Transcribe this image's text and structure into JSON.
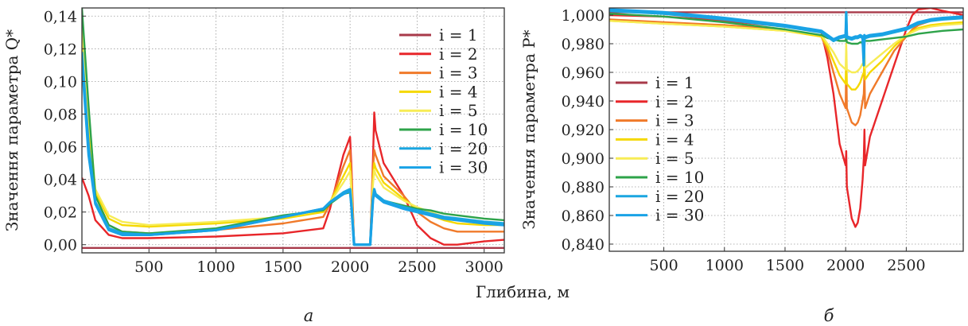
{
  "figure": {
    "shared_xlabel": "Глибина, м",
    "panel_a_caption": "а",
    "panel_b_caption": "б"
  },
  "colors": {
    "i1": "#a83a4a",
    "i2": "#e8262a",
    "i3": "#f07a2a",
    "i4": "#f5d800",
    "i5": "#f7ec55",
    "i10": "#2ea34a",
    "i20": "#1aa6e0",
    "i30": "#19a2e6"
  },
  "chart_data": [
    {
      "type": "line",
      "panel": "а",
      "ylabel": "Значення параметра Q*",
      "xlabel": "Глибина, м",
      "xlim": [
        0,
        3150
      ],
      "ylim": [
        -0.005,
        0.145
      ],
      "xticks": [
        500,
        1000,
        1500,
        2000,
        2500,
        3000
      ],
      "xtick_labels": [
        "500",
        "1000",
        "1500",
        "2000",
        "2500",
        "3000"
      ],
      "yticks": [
        0.0,
        0.02,
        0.04,
        0.06,
        0.08,
        0.1,
        0.12,
        0.14
      ],
      "ytick_labels": [
        "0,00",
        "0,02",
        "0,04",
        "0,06",
        "0,08",
        "0,10",
        "0,12",
        "0,14"
      ],
      "grid": true,
      "legend_position": "top-right",
      "series": [
        {
          "name": "i = 1",
          "key": "i1",
          "x": [
            0,
            3150
          ],
          "y": [
            -0.002,
            -0.002
          ]
        },
        {
          "name": "i = 2",
          "key": "i2",
          "x": [
            0,
            50,
            100,
            200,
            300,
            500,
            1000,
            1500,
            1800,
            1850,
            1950,
            2000,
            2010,
            2030,
            2150,
            2170,
            2180,
            2190,
            2250,
            2400,
            2500,
            2600,
            2700,
            2800,
            3000,
            3150
          ],
          "y": [
            0.041,
            0.03,
            0.015,
            0.006,
            0.004,
            0.004,
            0.005,
            0.007,
            0.01,
            0.022,
            0.055,
            0.066,
            0.048,
            0.0,
            0.0,
            0.05,
            0.081,
            0.07,
            0.05,
            0.03,
            0.012,
            0.004,
            0.0,
            0.0,
            0.002,
            0.003
          ]
        },
        {
          "name": "i = 3",
          "key": "i3",
          "x": [
            0,
            50,
            100,
            200,
            300,
            500,
            1000,
            1500,
            1800,
            1850,
            1950,
            2000,
            2010,
            2030,
            2150,
            2170,
            2180,
            2190,
            2250,
            2400,
            2500,
            2600,
            2700,
            2800,
            3000,
            3150
          ],
          "y": [
            0.12,
            0.07,
            0.03,
            0.012,
            0.008,
            0.007,
            0.009,
            0.013,
            0.017,
            0.025,
            0.048,
            0.058,
            0.042,
            0.0,
            0.0,
            0.045,
            0.058,
            0.055,
            0.042,
            0.03,
            0.02,
            0.014,
            0.01,
            0.008,
            0.008,
            0.008
          ]
        },
        {
          "name": "i = 4",
          "key": "i4",
          "x": [
            0,
            50,
            100,
            200,
            300,
            500,
            1000,
            1500,
            1800,
            1850,
            1950,
            2000,
            2010,
            2030,
            2150,
            2170,
            2180,
            2190,
            2250,
            2400,
            2500,
            2600,
            2700,
            2800,
            3000,
            3150
          ],
          "y": [
            0.128,
            0.075,
            0.032,
            0.016,
            0.012,
            0.011,
            0.013,
            0.016,
            0.02,
            0.026,
            0.042,
            0.05,
            0.036,
            0.0,
            0.0,
            0.04,
            0.05,
            0.047,
            0.038,
            0.028,
            0.022,
            0.018,
            0.015,
            0.013,
            0.012,
            0.012
          ]
        },
        {
          "name": "i = 5",
          "key": "i5",
          "x": [
            0,
            50,
            100,
            200,
            300,
            500,
            1000,
            1500,
            1800,
            1850,
            1950,
            2000,
            2010,
            2030,
            2150,
            2170,
            2180,
            2190,
            2250,
            2400,
            2500,
            2600,
            2700,
            2800,
            3000,
            3150
          ],
          "y": [
            0.132,
            0.08,
            0.034,
            0.018,
            0.014,
            0.012,
            0.014,
            0.017,
            0.021,
            0.026,
            0.038,
            0.045,
            0.032,
            0.0,
            0.0,
            0.036,
            0.046,
            0.043,
            0.035,
            0.027,
            0.023,
            0.02,
            0.017,
            0.015,
            0.013,
            0.012
          ]
        },
        {
          "name": "i = 10",
          "key": "i10",
          "x": [
            0,
            50,
            100,
            200,
            300,
            500,
            1000,
            1500,
            1800,
            1850,
            1950,
            2000,
            2010,
            2030,
            2150,
            2170,
            2180,
            2190,
            2250,
            2400,
            2500,
            2600,
            2700,
            2800,
            3000,
            3150
          ],
          "y": [
            0.145,
            0.085,
            0.03,
            0.012,
            0.008,
            0.007,
            0.01,
            0.018,
            0.021,
            0.025,
            0.031,
            0.032,
            0.024,
            0.0,
            0.0,
            0.027,
            0.032,
            0.03,
            0.027,
            0.024,
            0.022,
            0.021,
            0.019,
            0.018,
            0.016,
            0.015
          ]
        },
        {
          "name": "i = 20",
          "key": "i20",
          "x": [
            0,
            50,
            100,
            200,
            300,
            500,
            1000,
            1500,
            1800,
            1850,
            1950,
            2000,
            2010,
            2030,
            2150,
            2170,
            2180,
            2190,
            2250,
            2400,
            2500,
            2600,
            2700,
            2800,
            3000,
            3150
          ],
          "y": [
            0.118,
            0.06,
            0.026,
            0.01,
            0.007,
            0.006,
            0.009,
            0.017,
            0.022,
            0.026,
            0.032,
            0.034,
            0.025,
            0.0,
            0.0,
            0.028,
            0.034,
            0.031,
            0.027,
            0.023,
            0.021,
            0.019,
            0.017,
            0.016,
            0.014,
            0.013
          ]
        },
        {
          "name": "i = 30",
          "key": "i30",
          "x": [
            0,
            50,
            100,
            200,
            300,
            500,
            1000,
            1500,
            1800,
            1850,
            1950,
            2000,
            2010,
            2030,
            2150,
            2170,
            2180,
            2190,
            2250,
            2400,
            2500,
            2600,
            2700,
            2800,
            3000,
            3150
          ],
          "y": [
            0.113,
            0.055,
            0.025,
            0.009,
            0.006,
            0.006,
            0.009,
            0.017,
            0.022,
            0.026,
            0.031,
            0.033,
            0.024,
            0.0,
            0.0,
            0.027,
            0.033,
            0.03,
            0.026,
            0.022,
            0.02,
            0.018,
            0.016,
            0.015,
            0.013,
            0.012
          ]
        }
      ]
    },
    {
      "type": "line",
      "panel": "б",
      "ylabel": "Значення параметра P*",
      "xlabel": "Глибина, м",
      "xlim": [
        50,
        2970
      ],
      "ylim": [
        0.835,
        1.005
      ],
      "xticks": [
        500,
        1000,
        1500,
        2000,
        2500
      ],
      "xtick_labels": [
        "500",
        "1000",
        "1500",
        "2000",
        "2500"
      ],
      "yticks": [
        0.84,
        0.86,
        0.88,
        0.9,
        0.92,
        0.94,
        0.96,
        0.98,
        1.0
      ],
      "ytick_labels": [
        "0,840",
        "0,860",
        "0,880",
        "0,900",
        "0,920",
        "0,940",
        "0,960",
        "0,980",
        "1,000"
      ],
      "grid": true,
      "legend_position": "middle-left",
      "series": [
        {
          "name": "i = 1",
          "key": "i1",
          "x": [
            50,
            2970
          ],
          "y": [
            1.002,
            1.002
          ]
        },
        {
          "name": "i = 2",
          "key": "i2",
          "x": [
            50,
            500,
            1000,
            1500,
            1800,
            1850,
            1900,
            1950,
            2000,
            2005,
            2010,
            2050,
            2080,
            2100,
            2120,
            2140,
            2150,
            2155,
            2160,
            2200,
            2300,
            2400,
            2500,
            2550,
            2600,
            2700,
            2800,
            2970
          ],
          "y": [
            1.0,
            0.999,
            0.996,
            0.992,
            0.988,
            0.97,
            0.945,
            0.91,
            0.895,
            0.905,
            0.88,
            0.858,
            0.852,
            0.855,
            0.865,
            0.885,
            0.9,
            0.92,
            0.895,
            0.915,
            0.94,
            0.965,
            0.99,
            1.0,
            1.004,
            1.005,
            1.003,
            1.0
          ]
        },
        {
          "name": "i = 3",
          "key": "i3",
          "x": [
            50,
            500,
            1000,
            1500,
            1800,
            1850,
            1900,
            1950,
            2000,
            2005,
            2010,
            2050,
            2080,
            2100,
            2120,
            2140,
            2150,
            2155,
            2160,
            2200,
            2300,
            2400,
            2500,
            2550,
            2600,
            2700,
            2800,
            2970
          ],
          "y": [
            0.997,
            0.995,
            0.993,
            0.99,
            0.985,
            0.975,
            0.96,
            0.945,
            0.935,
            0.97,
            0.935,
            0.925,
            0.923,
            0.925,
            0.93,
            0.94,
            0.945,
            0.96,
            0.935,
            0.945,
            0.96,
            0.975,
            0.985,
            0.99,
            0.993,
            0.996,
            0.997,
            0.998
          ]
        },
        {
          "name": "i = 4",
          "key": "i4",
          "x": [
            50,
            500,
            1000,
            1500,
            1800,
            1850,
            1900,
            1950,
            2000,
            2005,
            2010,
            2050,
            2080,
            2100,
            2120,
            2140,
            2150,
            2155,
            2160,
            2200,
            2300,
            2400,
            2500,
            2550,
            2600,
            2700,
            2800,
            2970
          ],
          "y": [
            0.996,
            0.994,
            0.992,
            0.989,
            0.985,
            0.978,
            0.968,
            0.958,
            0.952,
            0.975,
            0.952,
            0.948,
            0.948,
            0.95,
            0.953,
            0.958,
            0.96,
            0.97,
            0.955,
            0.96,
            0.968,
            0.978,
            0.986,
            0.989,
            0.991,
            0.993,
            0.994,
            0.995
          ]
        },
        {
          "name": "i = 5",
          "key": "i5",
          "x": [
            50,
            500,
            1000,
            1500,
            1800,
            1850,
            1900,
            1950,
            2000,
            2005,
            2010,
            2050,
            2080,
            2100,
            2120,
            2140,
            2150,
            2155,
            2160,
            2200,
            2300,
            2400,
            2500,
            2550,
            2600,
            2700,
            2800,
            2970
          ],
          "y": [
            0.996,
            0.994,
            0.992,
            0.989,
            0.986,
            0.98,
            0.974,
            0.966,
            0.962,
            0.98,
            0.962,
            0.96,
            0.96,
            0.961,
            0.963,
            0.966,
            0.967,
            0.975,
            0.963,
            0.966,
            0.973,
            0.98,
            0.986,
            0.988,
            0.99,
            0.992,
            0.993,
            0.994
          ]
        },
        {
          "name": "i = 10",
          "key": "i10",
          "x": [
            50,
            500,
            1000,
            1500,
            1800,
            1850,
            1900,
            1950,
            2000,
            2005,
            2010,
            2050,
            2080,
            2100,
            2120,
            2140,
            2150,
            2155,
            2160,
            2200,
            2300,
            2400,
            2500,
            2550,
            2600,
            2700,
            2800,
            2970
          ],
          "y": [
            1.001,
            0.999,
            0.995,
            0.99,
            0.986,
            0.984,
            0.983,
            0.982,
            0.982,
            0.985,
            0.981,
            0.98,
            0.98,
            0.98,
            0.981,
            0.981,
            0.982,
            0.984,
            0.982,
            0.982,
            0.983,
            0.984,
            0.985,
            0.986,
            0.987,
            0.988,
            0.989,
            0.99
          ]
        },
        {
          "name": "i = 20",
          "key": "i20",
          "x": [
            50,
            500,
            1000,
            1500,
            1800,
            1850,
            1900,
            1950,
            2000,
            2005,
            2010,
            2050,
            2080,
            2100,
            2120,
            2140,
            2150,
            2155,
            2160,
            2200,
            2300,
            2400,
            2500,
            2550,
            2600,
            2700,
            2800,
            2970
          ],
          "y": [
            1.003,
            1.001,
            0.997,
            0.992,
            0.988,
            0.985,
            0.982,
            0.984,
            0.985,
            1.002,
            0.984,
            0.983,
            0.984,
            0.984,
            0.985,
            0.984,
            0.965,
            0.985,
            0.984,
            0.985,
            0.986,
            0.988,
            0.99,
            0.992,
            0.994,
            0.996,
            0.997,
            0.998
          ]
        },
        {
          "name": "i = 30",
          "key": "i30",
          "x": [
            50,
            500,
            1000,
            1500,
            1800,
            1850,
            1900,
            1950,
            2000,
            2005,
            2010,
            2050,
            2080,
            2100,
            2120,
            2140,
            2150,
            2155,
            2160,
            2200,
            2300,
            2400,
            2500,
            2550,
            2600,
            2700,
            2800,
            2970
          ],
          "y": [
            1.004,
            1.002,
            0.998,
            0.993,
            0.989,
            0.986,
            0.983,
            0.985,
            0.986,
            0.995,
            0.985,
            0.984,
            0.985,
            0.985,
            0.986,
            0.985,
            0.97,
            0.986,
            0.985,
            0.986,
            0.987,
            0.989,
            0.991,
            0.993,
            0.995,
            0.997,
            0.998,
            0.999
          ]
        }
      ]
    }
  ]
}
